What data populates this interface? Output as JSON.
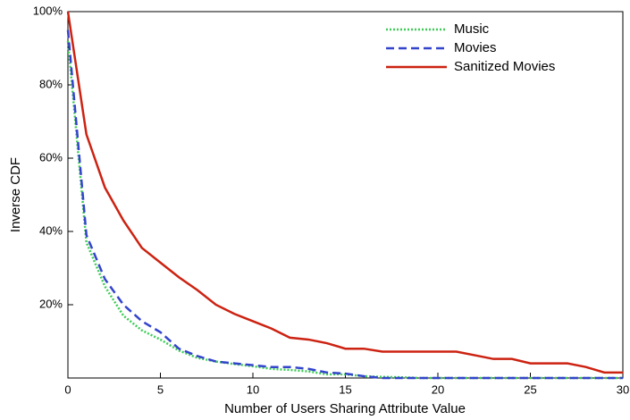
{
  "chart_data": {
    "type": "line",
    "x_label": "Number of Users Sharing Attribute Value",
    "y_label": "Inverse CDF",
    "x": [
      0,
      1,
      2,
      3,
      4,
      5,
      6,
      7,
      8,
      9,
      10,
      11,
      12,
      13,
      14,
      15,
      16,
      17,
      18,
      19,
      20,
      21,
      22,
      23,
      24,
      25,
      26,
      27,
      28,
      29,
      30
    ],
    "series": [
      {
        "name": "Music",
        "color": "#3dcc55",
        "dash": "dotted",
        "values": [
          92,
          37,
          25,
          17,
          13,
          10.5,
          7.5,
          5.5,
          4.5,
          3.8,
          3.2,
          2.5,
          2.2,
          1.8,
          1,
          1,
          0.5,
          0.3,
          0.2,
          0,
          0,
          0,
          0,
          0,
          0,
          0,
          0,
          0,
          0,
          0,
          0
        ]
      },
      {
        "name": "Movies",
        "color": "#3344cc",
        "dash": "dashed",
        "values": [
          95,
          39,
          27,
          20,
          15.5,
          12.5,
          8,
          6,
          4.5,
          4,
          3.5,
          3,
          3,
          2.5,
          1.5,
          1.2,
          0.5,
          0,
          0,
          0,
          0,
          0,
          0,
          0,
          0,
          0,
          0,
          0,
          0,
          0,
          0
        ]
      },
      {
        "name": "Sanitized Movies",
        "color": "#cc2211",
        "dash": "solid",
        "values": [
          100,
          66.5,
          52,
          43,
          35.5,
          31.5,
          27.5,
          24,
          20,
          17.5,
          15.5,
          13.5,
          11,
          10.5,
          9.5,
          8,
          8,
          7.2,
          7.2,
          7.2,
          7.2,
          7.2,
          6.2,
          5.2,
          5.2,
          4,
          4,
          4,
          3,
          1.5,
          1.5
        ]
      }
    ],
    "xlim": [
      0,
      30
    ],
    "ylim": [
      0,
      100
    ],
    "xticks": [
      0,
      5,
      10,
      15,
      20,
      25,
      30
    ],
    "yticks": [
      {
        "value": 20,
        "label": "20%"
      },
      {
        "value": 40,
        "label": "40%"
      },
      {
        "value": 60,
        "label": "60%"
      },
      {
        "value": 80,
        "label": "80%"
      },
      {
        "value": 100,
        "label": "100%"
      }
    ],
    "legend": "upper right"
  }
}
